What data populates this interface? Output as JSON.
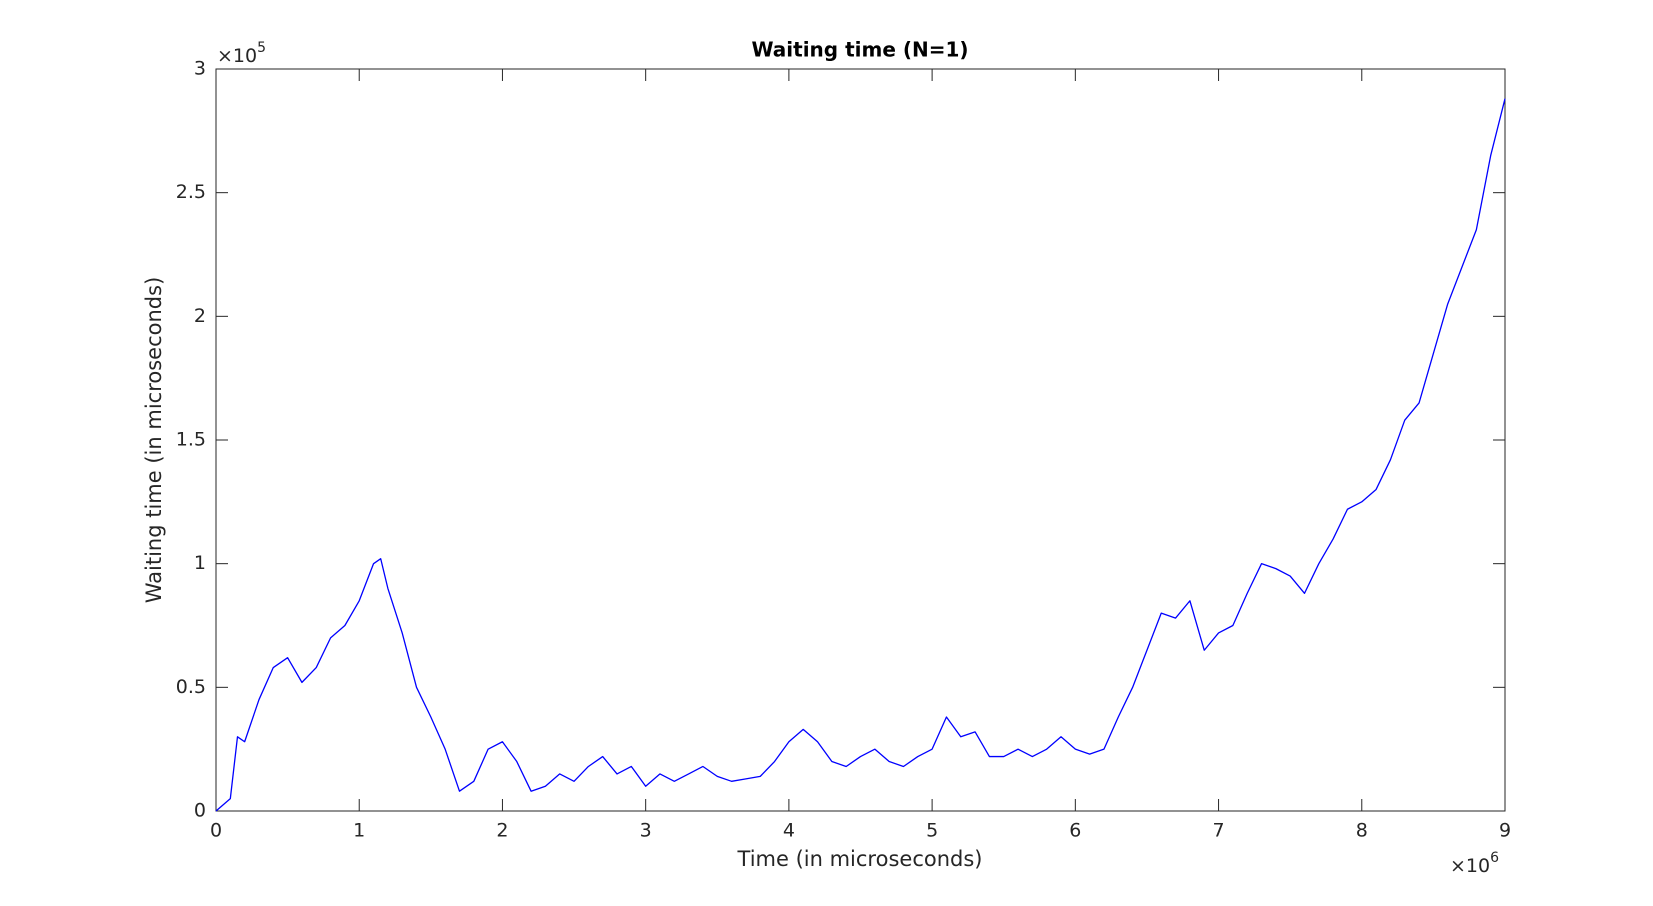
{
  "chart_data": {
    "type": "line",
    "title": "Waiting time (N=1)",
    "x_label": "Time (in microseconds)",
    "y_label": "Waiting time (in microseconds)",
    "x_exponent": {
      "base": "×10",
      "power": "6"
    },
    "y_exponent": {
      "base": "×10",
      "power": "5"
    },
    "x": [
      0,
      100000,
      150000,
      200000,
      300000,
      400000,
      500000,
      600000,
      700000,
      800000,
      900000,
      1000000,
      1100000,
      1150000,
      1200000,
      1300000,
      1400000,
      1500000,
      1600000,
      1700000,
      1800000,
      1900000,
      2000000,
      2100000,
      2200000,
      2300000,
      2400000,
      2500000,
      2600000,
      2700000,
      2800000,
      2900000,
      3000000,
      3100000,
      3200000,
      3300000,
      3400000,
      3500000,
      3600000,
      3700000,
      3800000,
      3900000,
      4000000,
      4100000,
      4200000,
      4300000,
      4400000,
      4500000,
      4600000,
      4700000,
      4800000,
      4900000,
      5000000,
      5100000,
      5200000,
      5300000,
      5400000,
      5500000,
      5600000,
      5700000,
      5800000,
      5900000,
      6000000,
      6100000,
      6200000,
      6300000,
      6400000,
      6500000,
      6600000,
      6700000,
      6800000,
      6900000,
      7000000,
      7100000,
      7200000,
      7300000,
      7400000,
      7500000,
      7600000,
      7700000,
      7800000,
      7900000,
      8000000,
      8100000,
      8200000,
      8300000,
      8400000,
      8500000,
      8600000,
      8700000,
      8800000,
      8900000,
      9000000
    ],
    "series": [
      {
        "name": "Waiting time",
        "color": "#0000ff",
        "values": [
          0,
          5000,
          30000,
          28000,
          45000,
          58000,
          62000,
          52000,
          58000,
          70000,
          75000,
          85000,
          100000,
          102000,
          90000,
          72000,
          50000,
          38000,
          25000,
          8000,
          12000,
          25000,
          28000,
          20000,
          8000,
          10000,
          15000,
          12000,
          18000,
          22000,
          15000,
          18000,
          10000,
          15000,
          12000,
          15000,
          18000,
          14000,
          12000,
          13000,
          14000,
          20000,
          28000,
          33000,
          28000,
          20000,
          18000,
          22000,
          25000,
          20000,
          18000,
          22000,
          25000,
          38000,
          30000,
          32000,
          22000,
          22000,
          25000,
          22000,
          25000,
          30000,
          25000,
          23000,
          25000,
          38000,
          50000,
          65000,
          80000,
          78000,
          85000,
          65000,
          72000,
          75000,
          88000,
          100000,
          98000,
          95000,
          88000,
          100000,
          110000,
          122000,
          125000,
          130000,
          142000,
          158000,
          165000,
          185000,
          205000,
          220000,
          235000,
          265000,
          288000
        ]
      }
    ],
    "xlim": [
      0,
      9000000
    ],
    "ylim": [
      0,
      300000
    ],
    "xticks": [
      0,
      {
        "value": 1000000,
        "label": "1"
      },
      {
        "value": 2000000,
        "label": "2"
      },
      {
        "value": 3000000,
        "label": "3"
      },
      {
        "value": 4000000,
        "label": "4"
      },
      {
        "value": 5000000,
        "label": "5"
      },
      {
        "value": 6000000,
        "label": "6"
      },
      {
        "value": 7000000,
        "label": "7"
      },
      {
        "value": 8000000,
        "label": "8"
      },
      {
        "value": 9000000,
        "label": "9"
      }
    ],
    "yticks": [
      0,
      {
        "value": 50000,
        "label": "0.5"
      },
      {
        "value": 100000,
        "label": "1"
      },
      {
        "value": 150000,
        "label": "1.5"
      },
      {
        "value": 200000,
        "label": "2"
      },
      {
        "value": 250000,
        "label": "2.5"
      },
      {
        "value": 300000,
        "label": "3"
      }
    ],
    "grid": false
  }
}
